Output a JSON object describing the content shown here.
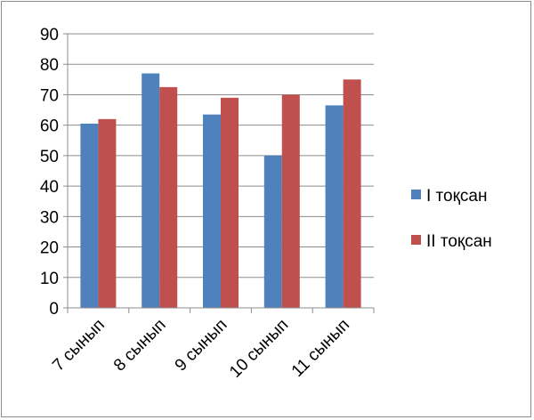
{
  "chart_data": {
    "type": "bar",
    "title": "",
    "xlabel": "",
    "ylabel": "",
    "ylim": [
      0,
      90
    ],
    "yticks": [
      "0",
      "10",
      "20",
      "30",
      "40",
      "50",
      "60",
      "70",
      "80",
      "90"
    ],
    "categories": [
      "7 сынып",
      "8 сынып",
      "9 сынып",
      "10 сынып",
      "11 сынып"
    ],
    "series": [
      {
        "name": "I тоқсан",
        "color": "#4F81BD",
        "values": [
          60.5,
          77,
          63.5,
          50,
          66.5
        ]
      },
      {
        "name": "II тоқсан",
        "color": "#C0504D",
        "values": [
          62,
          72.5,
          69,
          70,
          75
        ]
      }
    ],
    "grid": true,
    "legend": "right"
  }
}
